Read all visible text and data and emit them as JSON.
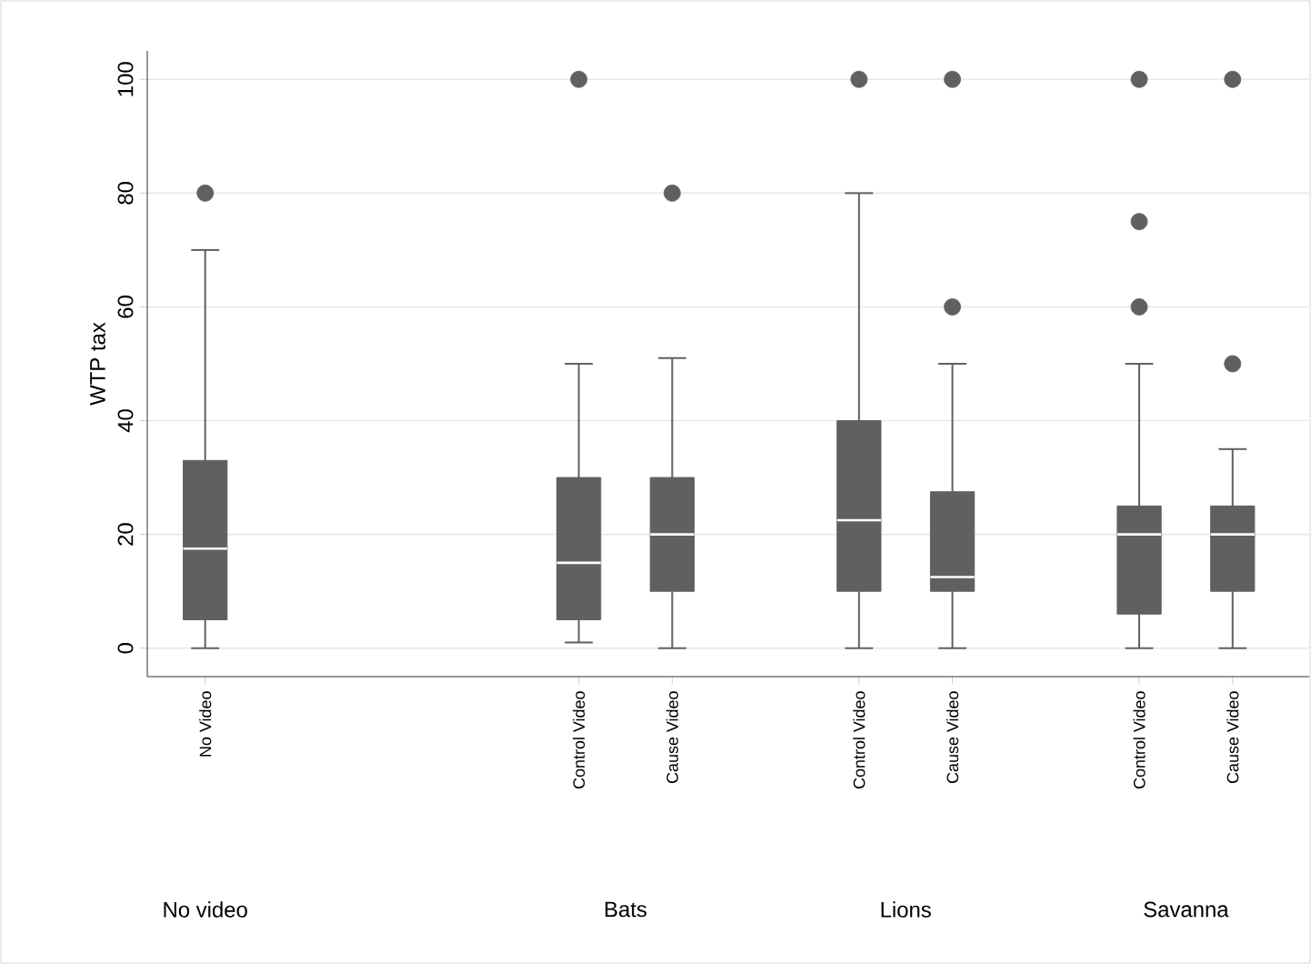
{
  "chart_data": {
    "type": "box",
    "ylabel": "WTP tax",
    "color": "#606060",
    "grid": "y",
    "ylim": [
      -5,
      105
    ],
    "yticks": [
      0,
      20,
      40,
      60,
      80,
      100
    ],
    "categories": [
      "No Video",
      null,
      null,
      null,
      "Control Video",
      "Cause Video",
      null,
      "Control Video",
      "Cause Video",
      null,
      "Control Video",
      "Cause Video"
    ],
    "boxes": [
      {
        "low": 0,
        "q1": 5,
        "median": 17.5,
        "q3": 33,
        "high": 70,
        "outliers": [
          80
        ]
      },
      null,
      null,
      null,
      {
        "low": 1,
        "q1": 5,
        "median": 15,
        "q3": 30,
        "high": 50,
        "outliers": [
          100
        ]
      },
      {
        "low": 0,
        "q1": 10,
        "median": 20,
        "q3": 30,
        "high": 51,
        "outliers": [
          80
        ]
      },
      null,
      {
        "low": 0,
        "q1": 10,
        "median": 22.5,
        "q3": 40,
        "high": 80,
        "outliers": [
          100
        ]
      },
      {
        "low": 0,
        "q1": 10,
        "median": 12.5,
        "q3": 27.5,
        "high": 50,
        "outliers": [
          60,
          100
        ]
      },
      null,
      {
        "low": 0,
        "q1": 6,
        "median": 20,
        "q3": 25,
        "high": 50,
        "outliers": [
          60,
          75,
          100
        ]
      },
      {
        "low": 0,
        "q1": 10,
        "median": 20,
        "q3": 25,
        "high": 35,
        "outliers": [
          50,
          100
        ]
      }
    ],
    "annotations": [
      "No video",
      "Bats",
      "Lions",
      "Savanna"
    ]
  }
}
